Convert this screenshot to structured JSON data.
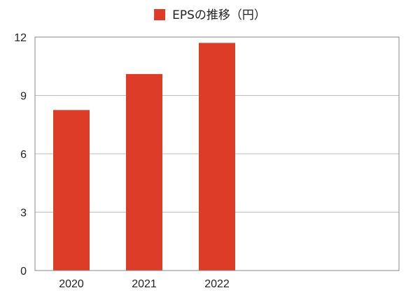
{
  "chart_data": {
    "type": "bar",
    "title": "",
    "xlabel": "",
    "ylabel": "",
    "categories": [
      "2020",
      "2021",
      "2022"
    ],
    "series": [
      {
        "name": "EPSの推移（円）",
        "values": [
          8.25,
          10.1,
          11.7
        ],
        "color": "#dc3c28"
      }
    ],
    "ylim": [
      0,
      12
    ],
    "yticks": [
      "0",
      "3",
      "6",
      "9",
      "12"
    ],
    "grid": true,
    "legend": "top-center",
    "slots": 5
  }
}
